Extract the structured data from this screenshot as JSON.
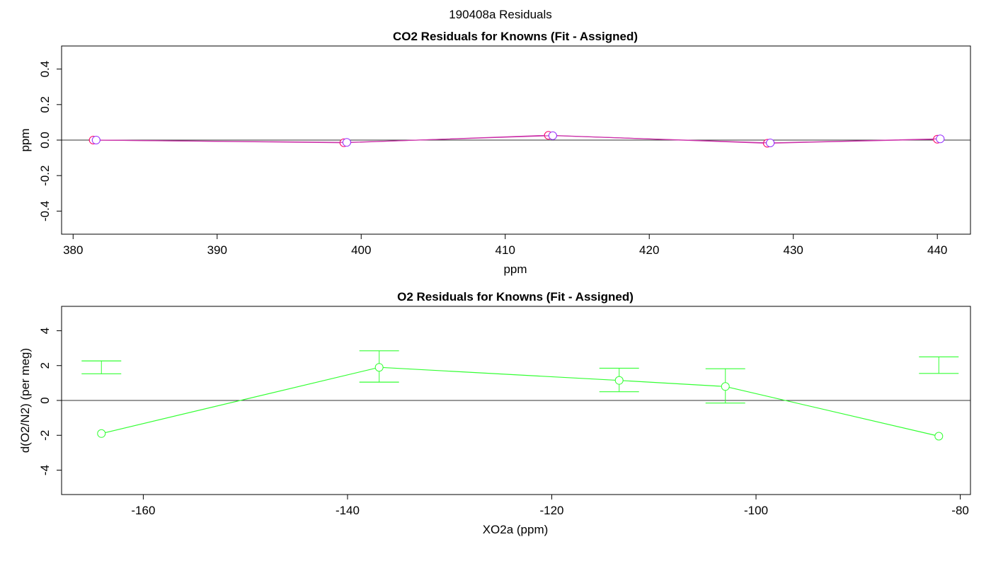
{
  "figure": {
    "suptitle": "190408a  Residuals"
  },
  "chart_data": [
    {
      "type": "scatter",
      "title": "CO2 Residuals for Knowns (Fit - Assigned)",
      "xlabel": "ppm",
      "ylabel": "ppm",
      "xlim": [
        379.2,
        442.3
      ],
      "ylim": [
        -0.53,
        0.53
      ],
      "xticks": [
        "380",
        "390",
        "400",
        "410",
        "420",
        "430",
        "440"
      ],
      "yticks": [
        "-0.4",
        "-0.2",
        "0.0",
        "0.2",
        "0.4"
      ],
      "zero_line": true,
      "series": [
        {
          "color": "#FF0066",
          "marker": "open-circle",
          "points": [
            {
              "x": 381.4,
              "y": 0.0,
              "err": 0.004
            },
            {
              "x": 398.8,
              "y": -0.015,
              "err": 0.005
            },
            {
              "x": 413.0,
              "y": 0.027,
              "err": 0.005
            },
            {
              "x": 428.2,
              "y": -0.018,
              "err": 0.005
            },
            {
              "x": 440.0,
              "y": 0.005,
              "err": 0.004
            }
          ]
        },
        {
          "color": "#9933FF",
          "marker": "open-circle",
          "points": [
            {
              "x": 381.6,
              "y": 0.0,
              "err": 0.004
            },
            {
              "x": 399.0,
              "y": -0.013,
              "err": 0.005
            },
            {
              "x": 413.3,
              "y": 0.025,
              "err": 0.005
            },
            {
              "x": 428.4,
              "y": -0.016,
              "err": 0.005
            },
            {
              "x": 440.2,
              "y": 0.007,
              "err": 0.004
            }
          ]
        }
      ]
    },
    {
      "type": "scatter",
      "title": "O2 Residuals for Knowns (Fit - Assigned)",
      "xlabel": "XO2a (ppm)",
      "ylabel": "d(O2/N2) (per meg)",
      "xlim": [
        -168.0,
        -79.0
      ],
      "ylim": [
        -5.4,
        5.4
      ],
      "xticks": [
        "-160",
        "-140",
        "-120",
        "-100",
        "-80"
      ],
      "yticks": [
        "-4",
        "-2",
        "0",
        "2",
        "4"
      ],
      "zero_line": true,
      "series": [
        {
          "color": "#33FF33",
          "marker": "open-circle",
          "points": [
            {
              "x": -164.1,
              "y": -1.9,
              "err_low": 2.27,
              "err_high": 1.53
            },
            {
              "x": -136.9,
              "y": 1.9,
              "err_low": 1.05,
              "err_high": 2.85
            },
            {
              "x": -113.4,
              "y": 1.15,
              "err_low": 0.5,
              "err_high": 1.85
            },
            {
              "x": -103.0,
              "y": 0.8,
              "err_low": -0.15,
              "err_high": 1.82
            },
            {
              "x": -82.1,
              "y": -2.05,
              "err_low": 2.5,
              "err_high": 1.55
            }
          ]
        }
      ]
    }
  ]
}
